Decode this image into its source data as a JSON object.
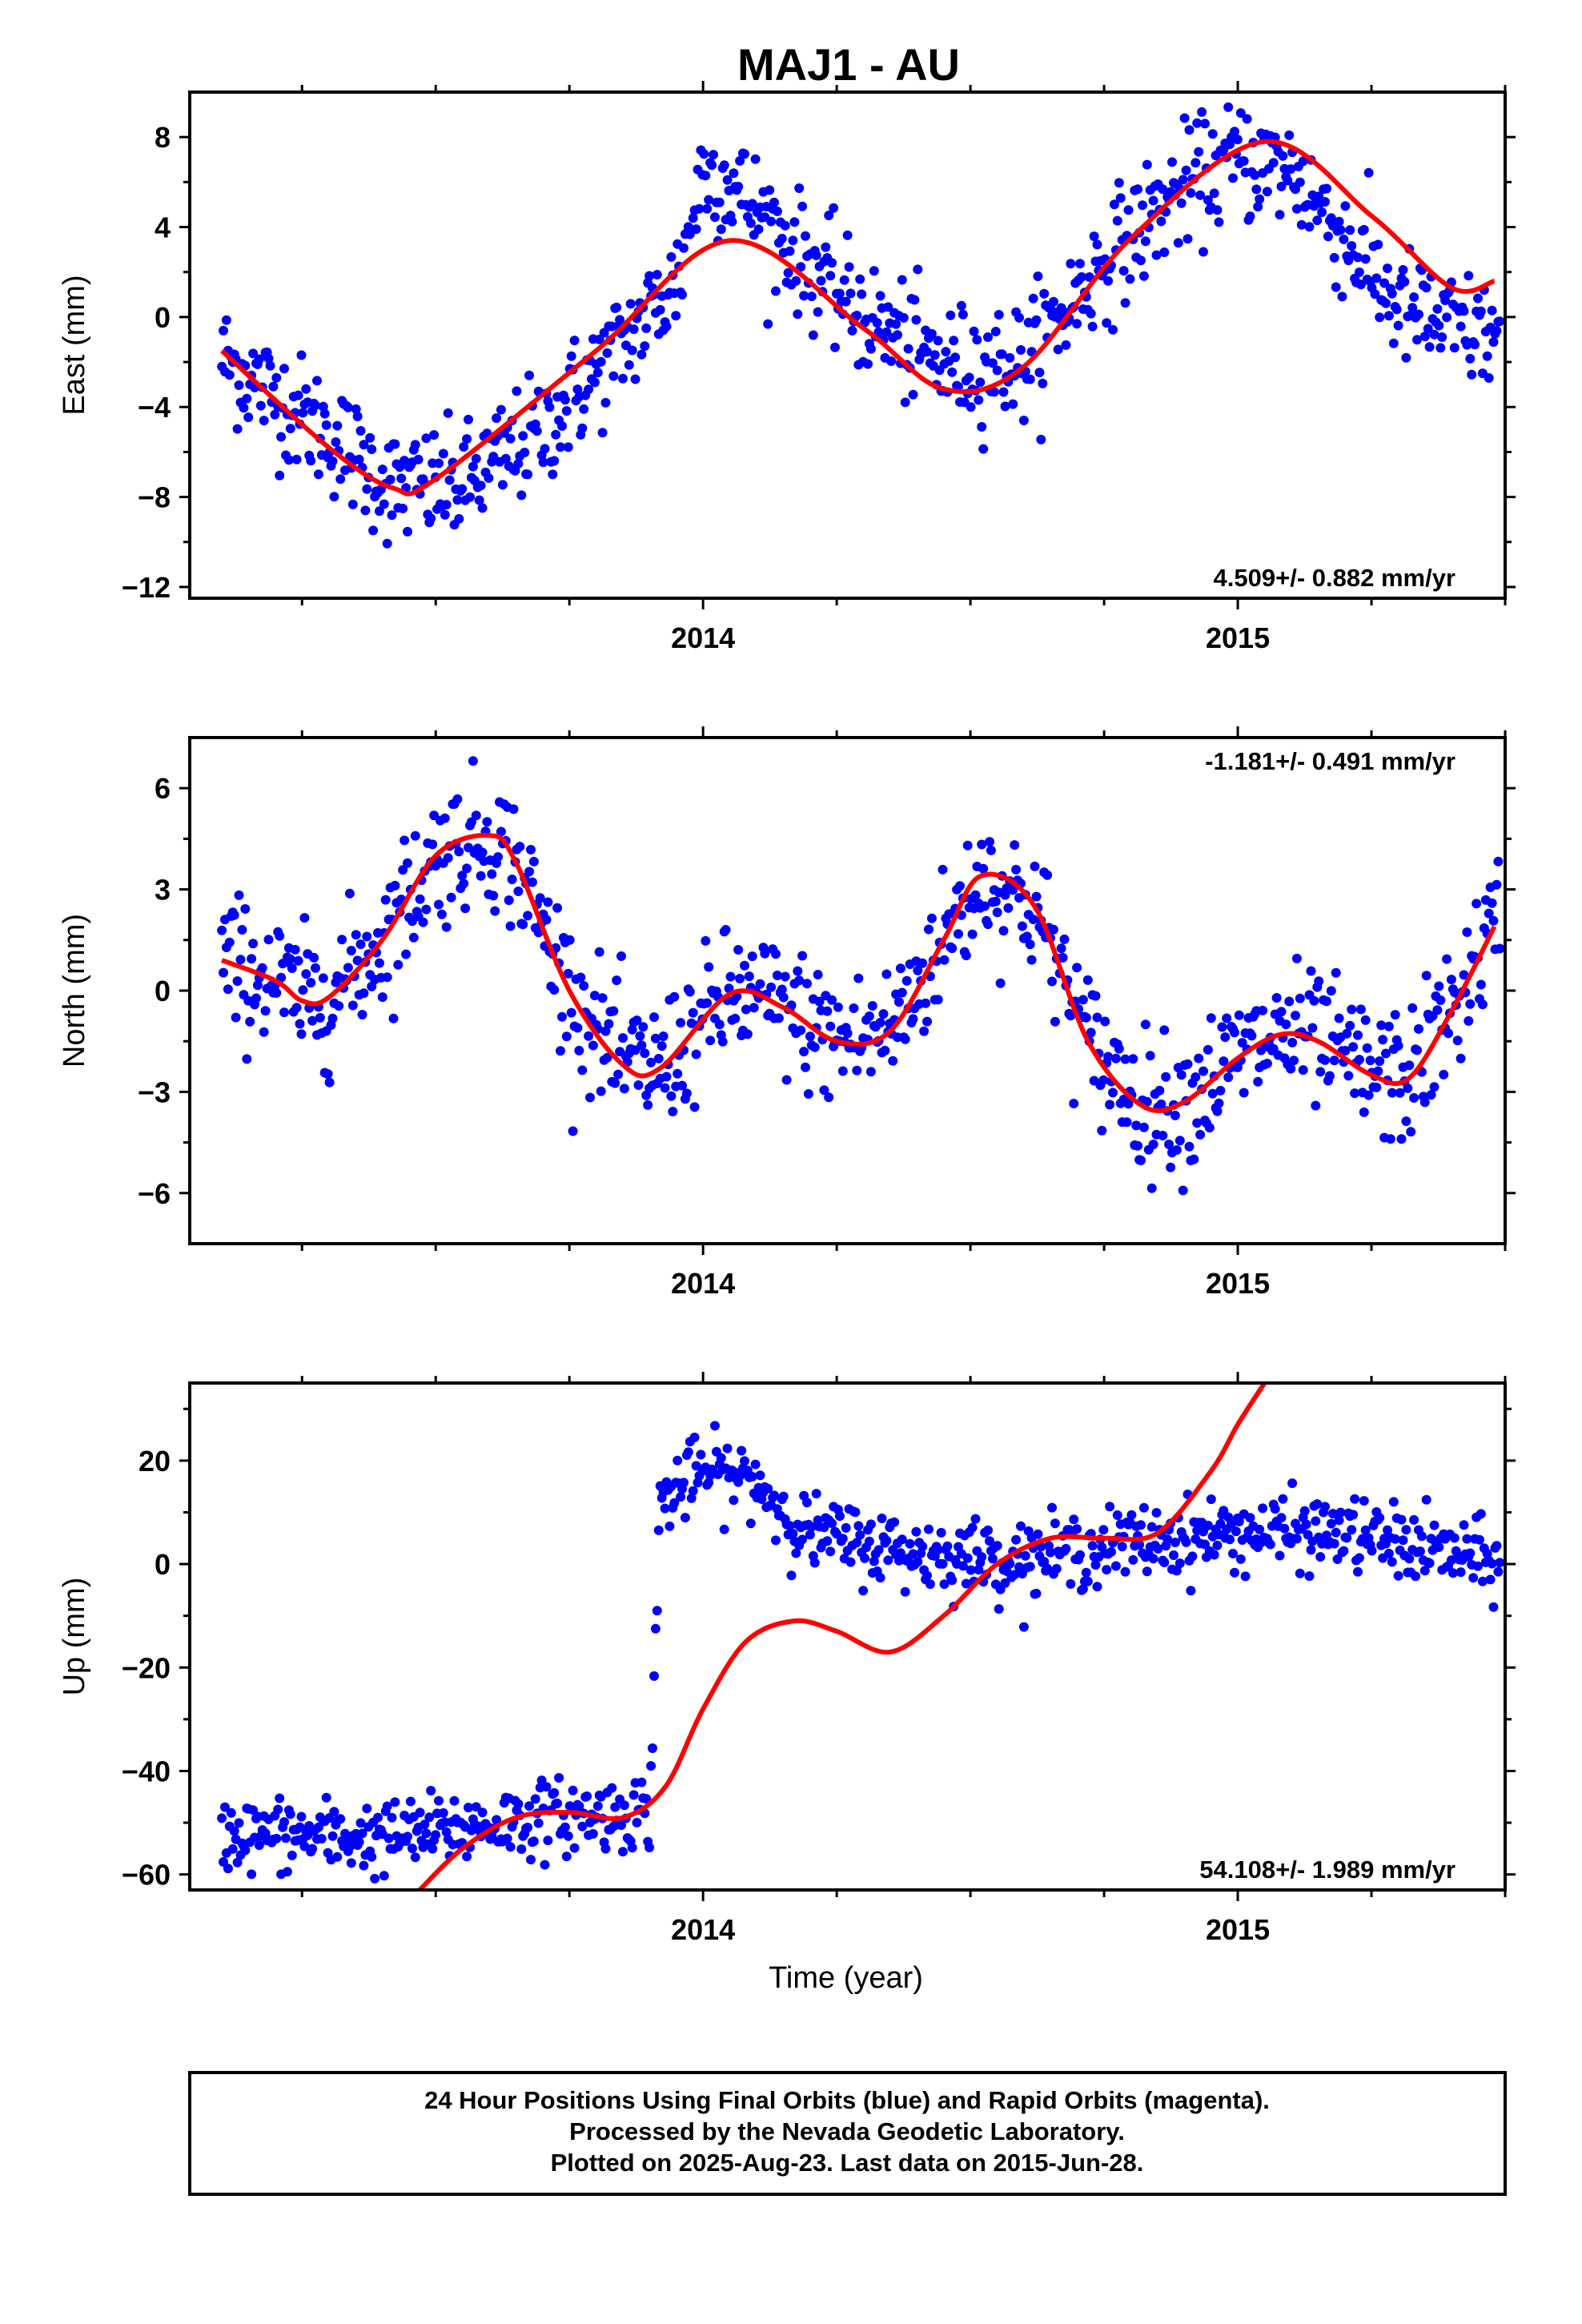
{
  "title": "MAJ1 - AU",
  "colors": {
    "final": "#0000ff",
    "model": "#ff0000",
    "frame": "#000000"
  },
  "footer": {
    "line1": "24 Hour Positions Using Final Orbits (blue) and Rapid Orbits (magenta).",
    "line2": "Processed by the Nevada Geodetic Laboratory.",
    "line3": "Plotted on 2025-Aug-23. Last data on 2015-Jun-28."
  },
  "chart_data": [
    {
      "type": "scatter",
      "name": "east",
      "ylabel": "East (mm)",
      "xlabel": "",
      "xlim": [
        2013.04,
        2015.5
      ],
      "ylim": [
        -12.5,
        10
      ],
      "yticks": [
        -12,
        -8,
        -4,
        0,
        4,
        8
      ],
      "xticks": [
        2014,
        2015
      ],
      "rate": "4.509+/- 0.882 mm/yr",
      "rate_position": "bottom-right",
      "model": {
        "x": [
          2013.1,
          2013.3,
          2013.42,
          2013.5,
          2013.8,
          2014.05,
          2014.3,
          2014.45,
          2014.6,
          2014.8,
          2015.05,
          2015.25,
          2015.4,
          2015.48
        ],
        "y": [
          -1.5,
          -5.8,
          -7.6,
          -7.2,
          -1.5,
          3.4,
          -0.5,
          -3.2,
          -2.2,
          3.5,
          7.8,
          4.5,
          1.3,
          1.6
        ]
      },
      "trend": {
        "x": [
          2013.1,
          2013.3,
          2013.42,
          2013.55,
          2013.7,
          2013.85,
          2013.95,
          2014.0,
          2014.05,
          2014.15,
          2014.3,
          2014.45,
          2014.6,
          2014.75,
          2014.9,
          2015.0,
          2015.1,
          2015.2,
          2015.3,
          2015.4,
          2015.48
        ],
        "y": [
          -1.8,
          -5.2,
          -7.6,
          -7.5,
          -5.0,
          -1.2,
          1.5,
          6.5,
          6.0,
          3.5,
          0.0,
          -2.2,
          -2.0,
          2.5,
          5.8,
          7.0,
          6.5,
          3.5,
          0.5,
          -0.5,
          -0.8
        ]
      },
      "noise": 1.3
    },
    {
      "type": "scatter",
      "name": "north",
      "ylabel": "North (mm)",
      "xlabel": "",
      "xlim": [
        2013.04,
        2015.5
      ],
      "ylim": [
        -7.5,
        7.5
      ],
      "yticks": [
        -6,
        -3,
        0,
        3,
        6
      ],
      "xticks": [
        2014,
        2015
      ],
      "rate": "-1.181+/- 0.491 mm/yr",
      "rate_position": "top-right",
      "model": {
        "x": [
          2013.1,
          2013.2,
          2013.25,
          2013.3,
          2013.4,
          2013.5,
          2013.6,
          2013.65,
          2013.75,
          2013.85,
          2013.92,
          2014.05,
          2014.15,
          2014.25,
          2014.35,
          2014.45,
          2014.52,
          2014.62,
          2014.72,
          2014.82,
          2014.9,
          2015.0,
          2015.08,
          2015.15,
          2015.25,
          2015.32,
          2015.4,
          2015.48
        ],
        "y": [
          0.9,
          0.3,
          -0.3,
          -0.2,
          1.5,
          4.0,
          4.6,
          3.8,
          0.0,
          -2.2,
          -2.3,
          -0.1,
          -0.5,
          -1.5,
          -1.2,
          1.5,
          3.4,
          2.5,
          -1.5,
          -3.4,
          -3.3,
          -2.0,
          -1.3,
          -1.5,
          -2.5,
          -2.6,
          -0.6,
          1.9
        ]
      },
      "noise": 1.0
    },
    {
      "type": "scatter",
      "name": "up",
      "ylabel": "Up (mm)",
      "xlabel": "Time (year)",
      "xlim": [
        2013.04,
        2015.5
      ],
      "ylim": [
        -63,
        35
      ],
      "yticks": [
        -60,
        -40,
        -20,
        0,
        20
      ],
      "xticks": [
        2014,
        2015
      ],
      "rate": "54.108+/- 1.989 mm/yr",
      "rate_position": "bottom-right",
      "model": {
        "x": [
          2013.47,
          2013.55,
          2013.65,
          2013.75,
          2013.85,
          2013.93,
          2014.0,
          2014.08,
          2014.17,
          2014.25,
          2014.35,
          2014.45,
          2014.55,
          2014.65,
          2014.75,
          2014.85,
          2014.95,
          2015.0,
          2015.05
        ],
        "y": [
          -63.0,
          -55.0,
          -49.0,
          -48.0,
          -49.0,
          -43.0,
          -28.0,
          -15.0,
          -11.0,
          -13.0,
          -17.0,
          -10.0,
          0.0,
          5.0,
          5.0,
          6.0,
          18.0,
          27.0,
          35.0
        ]
      },
      "trend": {
        "x": [
          2013.1,
          2013.4,
          2013.7,
          2013.9,
          2013.92,
          2014.0,
          2014.1,
          2014.15,
          2014.2,
          2014.4,
          2014.6,
          2014.8,
          2015.0,
          2015.2,
          2015.4,
          2015.48
        ],
        "y": [
          -52.0,
          -53.0,
          -49.0,
          -48.0,
          12.0,
          18.0,
          16.0,
          10.0,
          6.0,
          2.0,
          1.0,
          4.0,
          6.0,
          6.0,
          2.0,
          0.0
        ]
      },
      "noise": 3.5
    }
  ]
}
